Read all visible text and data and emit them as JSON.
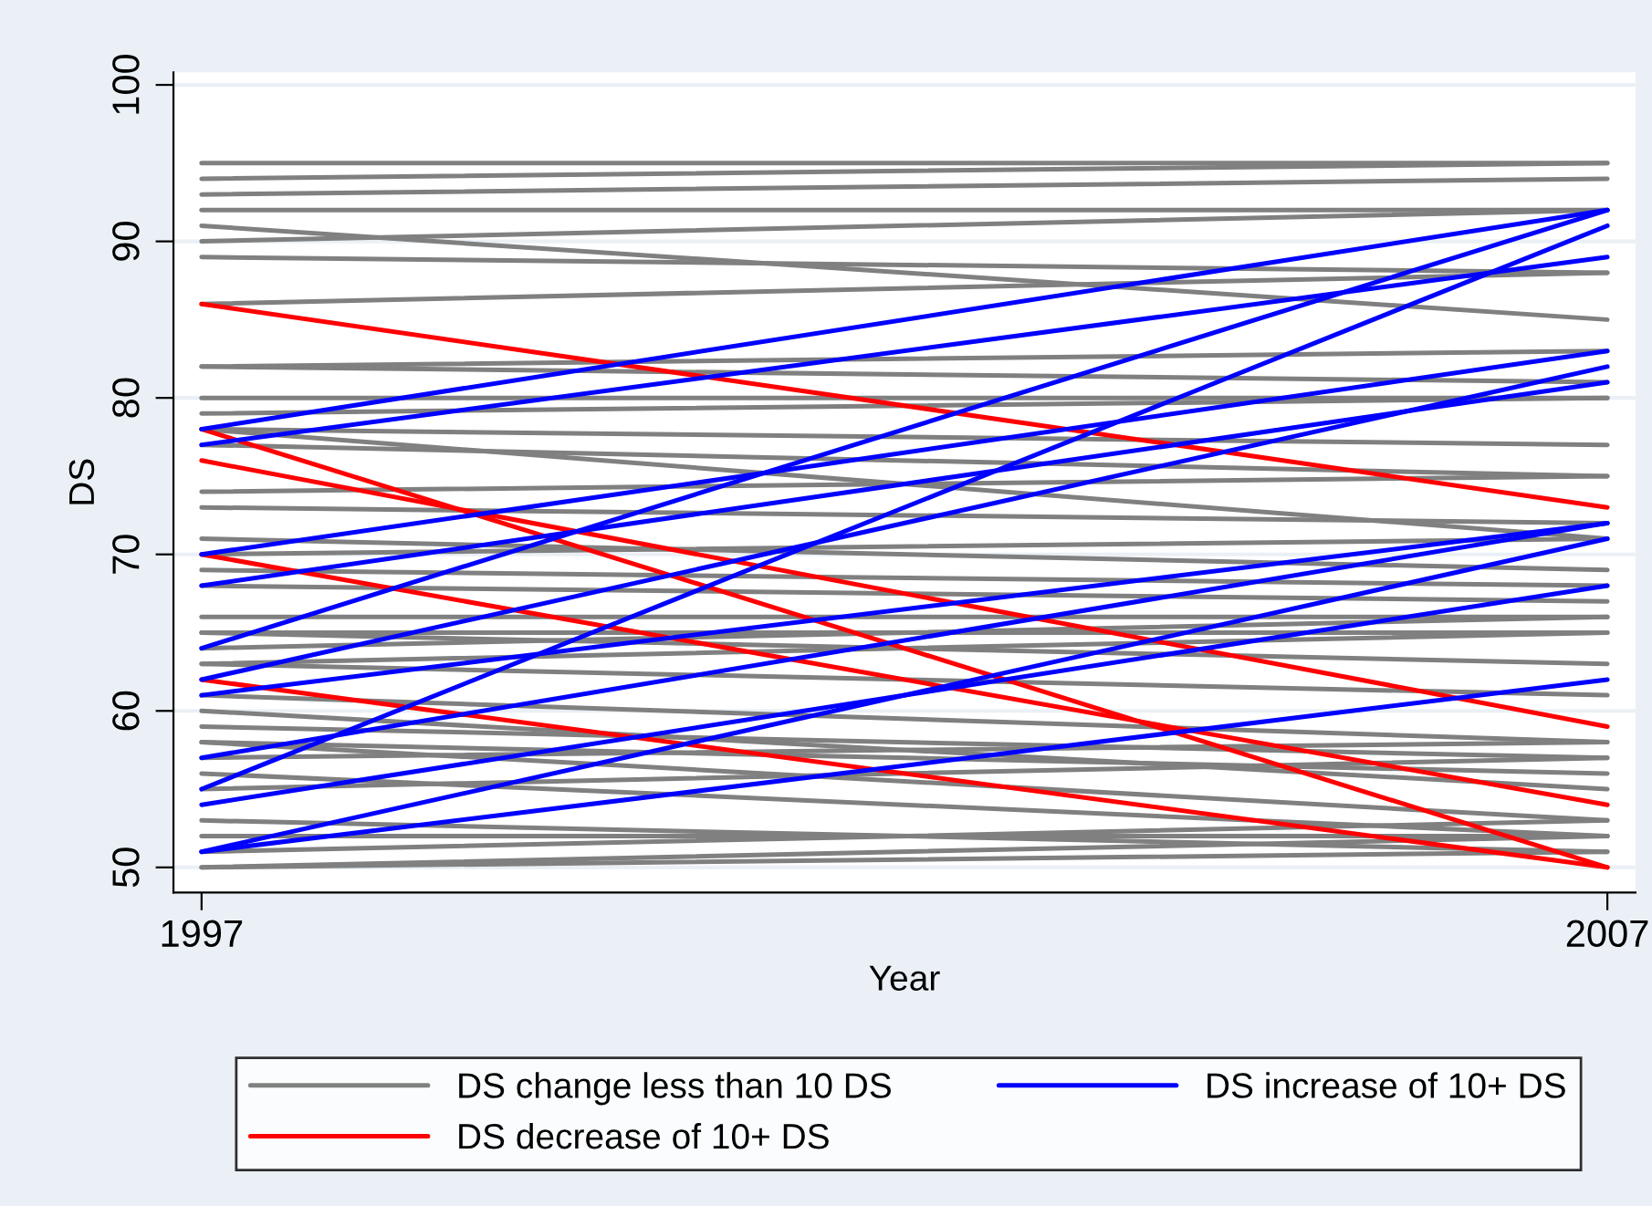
{
  "chart_data": {
    "type": "line",
    "xlabel": "Year",
    "ylabel": "DS",
    "x": [
      1997,
      2007
    ],
    "xlim": [
      1996.8,
      2007.2
    ],
    "xticks": [
      1997,
      2007
    ],
    "ylim": [
      48.4,
      100.8
    ],
    "yticks": [
      50,
      60,
      70,
      80,
      90,
      100
    ],
    "grid": "y",
    "legend": "bottom",
    "marker": "none",
    "line_style": "solid",
    "series": [
      {
        "name": "DS change less than 10 DS",
        "color": "#808080",
        "values": [
          95,
          95
        ]
      },
      {
        "color": "#808080",
        "values": [
          94,
          95
        ]
      },
      {
        "color": "#808080",
        "values": [
          93,
          94
        ]
      },
      {
        "color": "#808080",
        "values": [
          92,
          92
        ]
      },
      {
        "color": "#808080",
        "values": [
          91,
          85
        ]
      },
      {
        "color": "#808080",
        "values": [
          90,
          92
        ]
      },
      {
        "color": "#808080",
        "values": [
          89,
          88
        ]
      },
      {
        "color": "#808080",
        "values": [
          86,
          88
        ]
      },
      {
        "color": "#808080",
        "values": [
          82,
          83
        ]
      },
      {
        "color": "#808080",
        "values": [
          82,
          81
        ]
      },
      {
        "color": "#808080",
        "values": [
          80,
          80
        ]
      },
      {
        "color": "#808080",
        "values": [
          79,
          80
        ]
      },
      {
        "color": "#808080",
        "values": [
          78,
          77
        ]
      },
      {
        "color": "#808080",
        "values": [
          78,
          71
        ]
      },
      {
        "color": "#808080",
        "values": [
          77,
          75
        ]
      },
      {
        "color": "#808080",
        "values": [
          74,
          75
        ]
      },
      {
        "color": "#808080",
        "values": [
          73,
          72
        ]
      },
      {
        "color": "#808080",
        "values": [
          71,
          69
        ]
      },
      {
        "color": "#808080",
        "values": [
          70,
          71
        ]
      },
      {
        "color": "#808080",
        "values": [
          69,
          68
        ]
      },
      {
        "color": "#808080",
        "values": [
          68,
          67
        ]
      },
      {
        "color": "#808080",
        "values": [
          66,
          66
        ]
      },
      {
        "color": "#808080",
        "values": [
          65,
          65
        ]
      },
      {
        "color": "#808080",
        "values": [
          65,
          63
        ]
      },
      {
        "color": "#808080",
        "values": [
          64,
          66
        ]
      },
      {
        "color": "#808080",
        "values": [
          63,
          65
        ]
      },
      {
        "color": "#808080",
        "values": [
          63,
          61
        ]
      },
      {
        "color": "#808080",
        "values": [
          61,
          58
        ]
      },
      {
        "color": "#808080",
        "values": [
          60,
          55
        ]
      },
      {
        "color": "#808080",
        "values": [
          59,
          57
        ]
      },
      {
        "color": "#808080",
        "values": [
          58,
          56
        ]
      },
      {
        "color": "#808080",
        "values": [
          58,
          53
        ]
      },
      {
        "color": "#808080",
        "values": [
          57,
          58
        ]
      },
      {
        "color": "#808080",
        "values": [
          56,
          52
        ]
      },
      {
        "color": "#808080",
        "values": [
          55,
          57
        ]
      },
      {
        "color": "#808080",
        "values": [
          53,
          51
        ]
      },
      {
        "color": "#808080",
        "values": [
          52,
          52
        ]
      },
      {
        "color": "#808080",
        "values": [
          51,
          53
        ]
      },
      {
        "color": "#808080",
        "values": [
          50,
          51
        ]
      },
      {
        "color": "#808080",
        "values": [
          50,
          52
        ]
      },
      {
        "name": "DS decrease of 10+ DS",
        "color": "#ff0000",
        "values": [
          86,
          73
        ]
      },
      {
        "color": "#ff0000",
        "values": [
          78,
          50
        ]
      },
      {
        "color": "#ff0000",
        "values": [
          76,
          59
        ]
      },
      {
        "color": "#ff0000",
        "values": [
          70,
          54
        ]
      },
      {
        "color": "#ff0000",
        "values": [
          62,
          50
        ]
      },
      {
        "name": "DS increase of 10+ DS",
        "color": "#0000ff",
        "values": [
          78,
          92
        ]
      },
      {
        "color": "#0000ff",
        "values": [
          77,
          89
        ]
      },
      {
        "color": "#0000ff",
        "values": [
          70,
          83
        ]
      },
      {
        "color": "#0000ff",
        "values": [
          68,
          81
        ]
      },
      {
        "color": "#0000ff",
        "values": [
          64,
          92
        ]
      },
      {
        "color": "#0000ff",
        "values": [
          62,
          82
        ]
      },
      {
        "color": "#0000ff",
        "values": [
          61,
          72
        ]
      },
      {
        "color": "#0000ff",
        "values": [
          57,
          72
        ]
      },
      {
        "color": "#0000ff",
        "values": [
          55,
          91
        ]
      },
      {
        "color": "#0000ff",
        "values": [
          54,
          68
        ]
      },
      {
        "color": "#0000ff",
        "values": [
          51,
          71
        ]
      },
      {
        "color": "#0000ff",
        "values": [
          51,
          62
        ]
      }
    ]
  }
}
